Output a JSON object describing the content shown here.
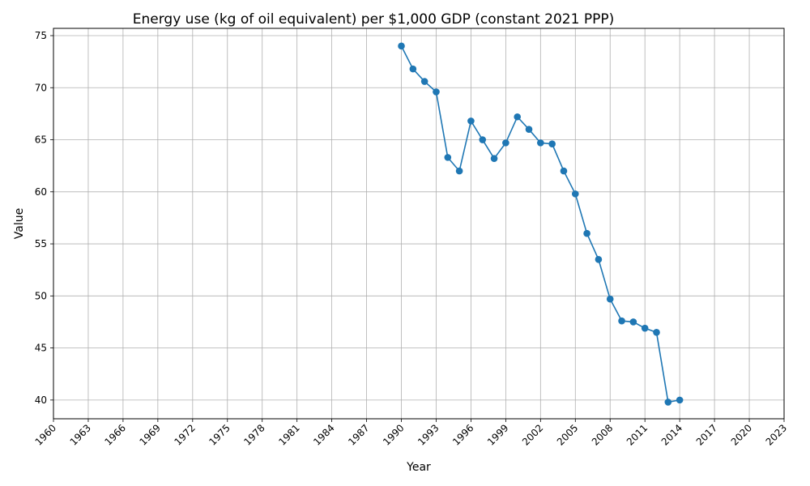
{
  "chart_data": {
    "type": "line",
    "title": "Energy use (kg of oil equivalent) per $1,000 GDP (constant 2021 PPP)",
    "xlabel": "Year",
    "ylabel": "Value",
    "xlim": [
      1960,
      2023
    ],
    "ylim": [
      38.2,
      75.7
    ],
    "x_ticks": [
      1960,
      1963,
      1966,
      1969,
      1972,
      1975,
      1978,
      1981,
      1984,
      1987,
      1990,
      1993,
      1996,
      1999,
      2002,
      2005,
      2008,
      2011,
      2014,
      2017,
      2020,
      2023
    ],
    "y_ticks": [
      40,
      45,
      50,
      55,
      60,
      65,
      70,
      75
    ],
    "grid": true,
    "series_color": "#1f77b4",
    "series": [
      {
        "x": [
          1990,
          1991,
          1992,
          1993,
          1994,
          1995,
          1996,
          1997,
          1998,
          1999,
          2000,
          2001,
          2002,
          2003,
          2004,
          2005,
          2006,
          2007,
          2008,
          2009,
          2010,
          2011,
          2012,
          2013,
          2014
        ],
        "values": [
          74.0,
          71.8,
          70.6,
          69.6,
          63.3,
          62.0,
          66.8,
          65.0,
          63.2,
          64.7,
          67.2,
          66.0,
          64.7,
          64.6,
          62.0,
          59.8,
          56.0,
          53.5,
          49.7,
          47.6,
          47.5,
          46.9,
          46.5,
          39.8,
          40.0
        ]
      }
    ]
  }
}
